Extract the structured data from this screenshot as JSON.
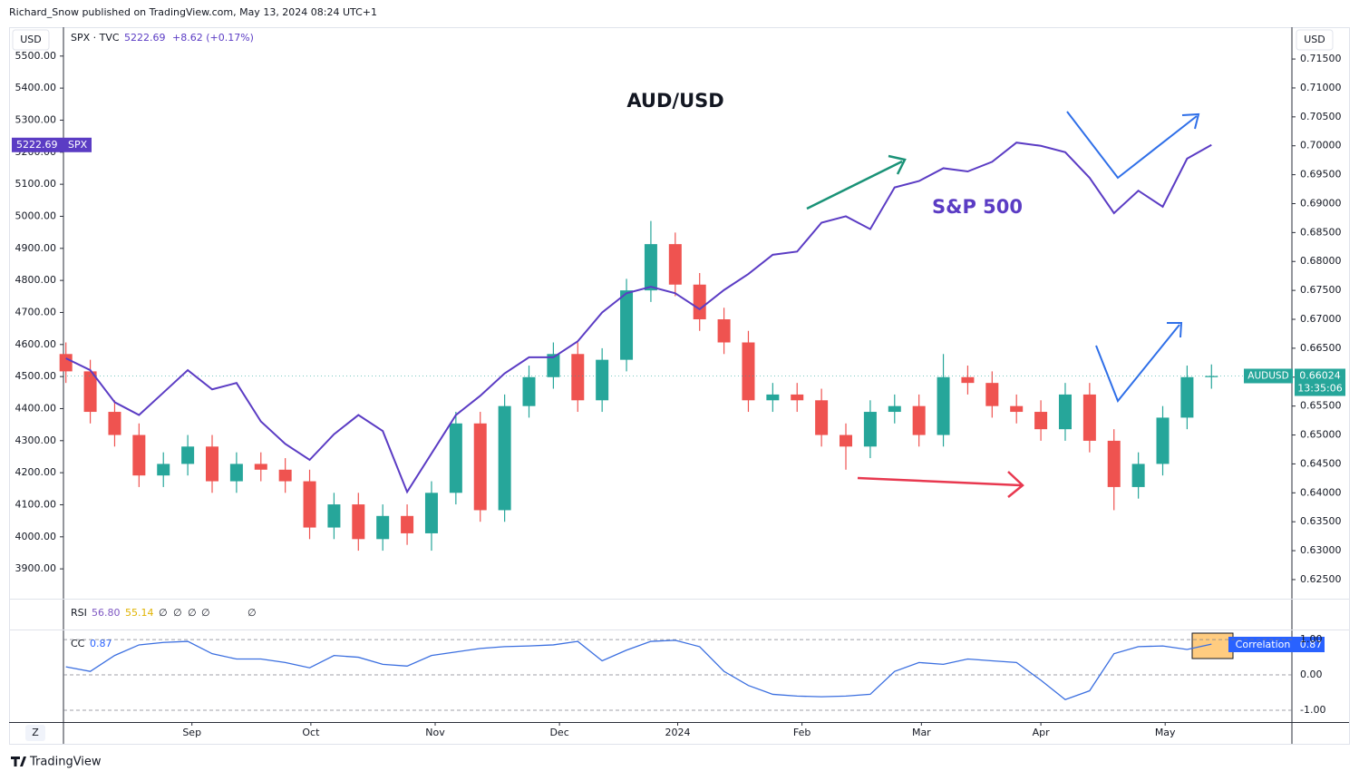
{
  "header": "Richard_Snow published on TradingView.com, May 13, 2024 08:24 UTC+1",
  "currency": "USD",
  "legend": {
    "symbol": "SPX · TVC",
    "price": "5222.69",
    "change": "+8.62 (+0.17%)"
  },
  "spx_tag": {
    "price": "5222.69",
    "name": "SPX"
  },
  "aud_tag": {
    "name": "AUDUSD",
    "price": "0.66024",
    "countdown": "13:35:06"
  },
  "rsi": {
    "name": "RSI",
    "values": [
      "56.80",
      "55.14"
    ],
    "empty": [
      "∅",
      "∅",
      "∅",
      "∅",
      "∅"
    ]
  },
  "cc": {
    "name": "CC",
    "value": "0.87",
    "tag": "Correlation",
    "tag_value": "0.87"
  },
  "z_button": "Z",
  "footer": "TradingView",
  "chart_data": [
    {
      "type": "candlestick",
      "title": "AUD/USD",
      "annotations": [
        "S&P 500"
      ],
      "x": [
        0,
        1,
        2,
        3,
        4,
        5,
        6,
        7,
        8,
        9,
        10,
        11,
        12,
        13,
        14,
        15,
        16,
        17,
        18,
        19,
        20,
        21,
        22,
        23,
        24,
        25,
        26,
        27,
        28,
        29,
        30,
        31,
        32,
        33,
        34,
        35,
        36,
        37,
        38,
        39,
        40,
        41,
        42,
        43,
        44,
        45,
        46,
        47
      ],
      "xlim": [
        -0.1,
        50.3
      ],
      "ylim": [
        0.6217,
        0.7205
      ],
      "yticks": [
        {
          "value": 0.625,
          "label": "0.62500"
        },
        {
          "value": 0.63,
          "label": "0.63000"
        },
        {
          "value": 0.635,
          "label": "0.63500"
        },
        {
          "value": 0.64,
          "label": "0.64000"
        },
        {
          "value": 0.645,
          "label": "0.64500"
        },
        {
          "value": 0.65,
          "label": "0.65000"
        },
        {
          "value": 0.655,
          "label": "0.65500"
        },
        {
          "value": 0.66,
          "label": "0.66000"
        },
        {
          "value": 0.665,
          "label": "0.66500"
        },
        {
          "value": 0.67,
          "label": "0.67000"
        },
        {
          "value": 0.675,
          "label": "0.67500"
        },
        {
          "value": 0.68,
          "label": "0.68000"
        },
        {
          "value": 0.685,
          "label": "0.68500"
        },
        {
          "value": 0.69,
          "label": "0.69000"
        },
        {
          "value": 0.695,
          "label": "0.69500"
        },
        {
          "value": 0.7,
          "label": "0.70000"
        },
        {
          "value": 0.705,
          "label": "0.70500"
        },
        {
          "value": 0.71,
          "label": "0.71000"
        },
        {
          "value": 0.715,
          "label": "0.71500"
        }
      ],
      "y2lim": [
        3807,
        5590
      ],
      "y2ticks": [
        {
          "value": 3900,
          "label": "3900.00"
        },
        {
          "value": 4000,
          "label": "4000.00"
        },
        {
          "value": 4100,
          "label": "4100.00"
        },
        {
          "value": 4200,
          "label": "4200.00"
        },
        {
          "value": 4300,
          "label": "4300.00"
        },
        {
          "value": 4400,
          "label": "4400.00"
        },
        {
          "value": 4500,
          "label": "4500.00"
        },
        {
          "value": 4600,
          "label": "4600.00"
        },
        {
          "value": 4700,
          "label": "4700.00"
        },
        {
          "value": 4800,
          "label": "4800.00"
        },
        {
          "value": 4900,
          "label": "4900.00"
        },
        {
          "value": 5000,
          "label": "5000.00"
        },
        {
          "value": 5100,
          "label": "5100.00"
        },
        {
          "value": 5200,
          "label": "5200.00"
        },
        {
          "value": 5300,
          "label": "5300.00"
        },
        {
          "value": 5400,
          "label": "5400.00"
        },
        {
          "value": 5500,
          "label": "5500.00"
        }
      ],
      "grid": false,
      "series": [
        {
          "name": "AUDUSD",
          "type": "candlestick",
          "up_color": "#26a69a",
          "down_color": "#ef5350",
          "open": [
            0.664,
            0.661,
            0.654,
            0.65,
            0.643,
            0.645,
            0.648,
            0.642,
            0.645,
            0.644,
            0.642,
            0.634,
            0.638,
            0.632,
            0.636,
            0.633,
            0.64,
            0.652,
            0.637,
            0.655,
            0.66,
            0.664,
            0.656,
            0.663,
            0.675,
            0.683,
            0.676,
            0.67,
            0.666,
            0.656,
            0.657,
            0.656,
            0.65,
            0.648,
            0.654,
            0.655,
            0.65,
            0.66,
            0.659,
            0.655,
            0.654,
            0.651,
            0.657,
            0.649,
            0.641,
            0.645,
            0.653,
            0.66
          ],
          "high": [
            0.666,
            0.663,
            0.656,
            0.652,
            0.647,
            0.65,
            0.65,
            0.647,
            0.647,
            0.646,
            0.644,
            0.64,
            0.64,
            0.638,
            0.638,
            0.642,
            0.654,
            0.654,
            0.657,
            0.662,
            0.666,
            0.666,
            0.665,
            0.677,
            0.687,
            0.685,
            0.678,
            0.672,
            0.668,
            0.659,
            0.659,
            0.658,
            0.652,
            0.656,
            0.657,
            0.657,
            0.664,
            0.662,
            0.661,
            0.657,
            0.656,
            0.659,
            0.659,
            0.651,
            0.647,
            0.655,
            0.662,
            0.6622
          ],
          "low": [
            0.659,
            0.652,
            0.648,
            0.641,
            0.641,
            0.643,
            0.64,
            0.64,
            0.642,
            0.64,
            0.632,
            0.632,
            0.63,
            0.63,
            0.631,
            0.63,
            0.638,
            0.635,
            0.635,
            0.653,
            0.658,
            0.654,
            0.654,
            0.661,
            0.673,
            0.674,
            0.668,
            0.664,
            0.654,
            0.654,
            0.654,
            0.648,
            0.644,
            0.646,
            0.652,
            0.648,
            0.648,
            0.657,
            0.653,
            0.652,
            0.649,
            0.649,
            0.647,
            0.637,
            0.639,
            0.643,
            0.651,
            0.658
          ],
          "close": [
            0.661,
            0.654,
            0.65,
            0.643,
            0.645,
            0.648,
            0.642,
            0.645,
            0.644,
            0.642,
            0.634,
            0.638,
            0.632,
            0.636,
            0.633,
            0.64,
            0.652,
            0.637,
            0.655,
            0.66,
            0.664,
            0.656,
            0.663,
            0.675,
            0.683,
            0.676,
            0.67,
            0.666,
            0.656,
            0.657,
            0.656,
            0.65,
            0.648,
            0.654,
            0.655,
            0.65,
            0.66,
            0.659,
            0.655,
            0.654,
            0.651,
            0.657,
            0.649,
            0.641,
            0.645,
            0.653,
            0.66,
            0.6602
          ]
        },
        {
          "name": "SPX",
          "type": "line",
          "axis": "y2",
          "color": "#5b3cc4",
          "values": [
            4557,
            4520,
            4420,
            4380,
            4450,
            4520,
            4460,
            4480,
            4360,
            4290,
            4240,
            4320,
            4380,
            4330,
            4140,
            4260,
            4380,
            4440,
            4510,
            4560,
            4560,
            4610,
            4700,
            4760,
            4780,
            4760,
            4710,
            4770,
            4820,
            4880,
            4890,
            4980,
            5000,
            4960,
            5090,
            5110,
            5150,
            5140,
            5170,
            5230,
            5220,
            5200,
            5120,
            5010,
            5080,
            5030,
            5180,
            5222.69
          ]
        }
      ]
    },
    {
      "type": "line",
      "x": [
        0,
        1,
        2,
        3,
        4,
        5,
        6,
        7,
        8,
        9,
        10,
        11,
        12,
        13,
        14,
        15,
        16,
        17,
        18,
        19,
        20,
        21,
        22,
        23,
        24,
        25,
        26,
        27,
        28,
        29,
        30,
        31,
        32,
        33,
        34,
        35,
        36,
        37,
        38,
        39,
        40,
        41,
        42,
        43,
        44,
        45,
        46,
        47
      ],
      "xlim": [
        -0.1,
        50.3
      ],
      "xticks": [
        {
          "value": 5.17,
          "label": "Sep"
        },
        {
          "value": 10.05,
          "label": "Oct"
        },
        {
          "value": 15.15,
          "label": "Nov"
        },
        {
          "value": 20.25,
          "label": "Dec"
        },
        {
          "value": 25.1,
          "label": "2024"
        },
        {
          "value": 30.2,
          "label": "Feb"
        },
        {
          "value": 35.1,
          "label": "Mar"
        },
        {
          "value": 40.0,
          "label": "Apr"
        },
        {
          "value": 45.1,
          "label": "May"
        }
      ],
      "ylim": [
        -1.31,
        1.26
      ],
      "yticks": [
        {
          "value": 1,
          "label": "1.00"
        },
        {
          "value": 0,
          "label": "0.00"
        },
        {
          "value": -1,
          "label": "-1.00"
        }
      ],
      "grid": true,
      "series": [
        {
          "name": "CC",
          "color": "#3b6fe0",
          "values": [
            0.23,
            0.1,
            0.55,
            0.85,
            0.92,
            0.95,
            0.6,
            0.45,
            0.45,
            0.35,
            0.2,
            0.55,
            0.5,
            0.3,
            0.25,
            0.55,
            0.65,
            0.75,
            0.8,
            0.82,
            0.85,
            0.95,
            0.4,
            0.7,
            0.95,
            0.98,
            0.8,
            0.1,
            -0.3,
            -0.55,
            -0.6,
            -0.62,
            -0.6,
            -0.55,
            0.1,
            0.35,
            0.3,
            0.45,
            0.4,
            0.35,
            -0.15,
            -0.7,
            -0.45,
            0.6,
            0.8,
            0.82,
            0.72,
            0.87
          ]
        }
      ]
    }
  ]
}
